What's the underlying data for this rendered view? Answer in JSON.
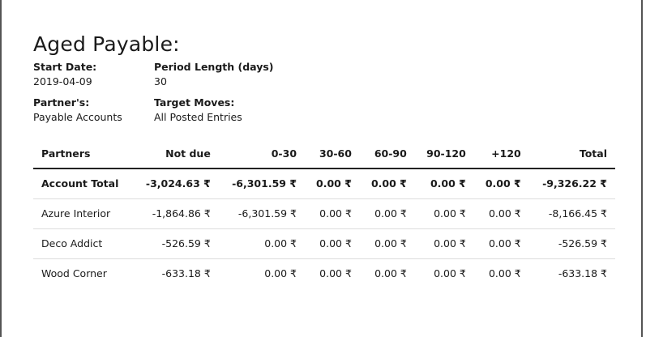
{
  "report": {
    "title": "Aged Payable:"
  },
  "info": {
    "start_date": {
      "label": "Start Date:",
      "value": "2019-04-09"
    },
    "period_length": {
      "label": "Period Length (days)",
      "value": "30"
    },
    "partners": {
      "label": "Partner's:",
      "value": "Payable Accounts"
    },
    "target_moves": {
      "label": "Target Moves:",
      "value": "All Posted Entries"
    }
  },
  "table": {
    "headers": [
      "Partners",
      "Not due",
      "0-30",
      "30-60",
      "60-90",
      "90-120",
      "+120",
      "Total"
    ],
    "total_row": [
      "Account Total",
      "-3,024.63 ₹",
      "-6,301.59 ₹",
      "0.00 ₹",
      "0.00 ₹",
      "0.00 ₹",
      "0.00 ₹",
      "-9,326.22 ₹"
    ],
    "rows": [
      [
        "Azure Interior",
        "-1,864.86 ₹",
        "-6,301.59 ₹",
        "0.00 ₹",
        "0.00 ₹",
        "0.00 ₹",
        "0.00 ₹",
        "-8,166.45 ₹"
      ],
      [
        "Deco Addict",
        "-526.59 ₹",
        "0.00 ₹",
        "0.00 ₹",
        "0.00 ₹",
        "0.00 ₹",
        "0.00 ₹",
        "-526.59 ₹"
      ],
      [
        "Wood Corner",
        "-633.18 ₹",
        "0.00 ₹",
        "0.00 ₹",
        "0.00 ₹",
        "0.00 ₹",
        "0.00 ₹",
        "-633.18 ₹"
      ]
    ]
  }
}
